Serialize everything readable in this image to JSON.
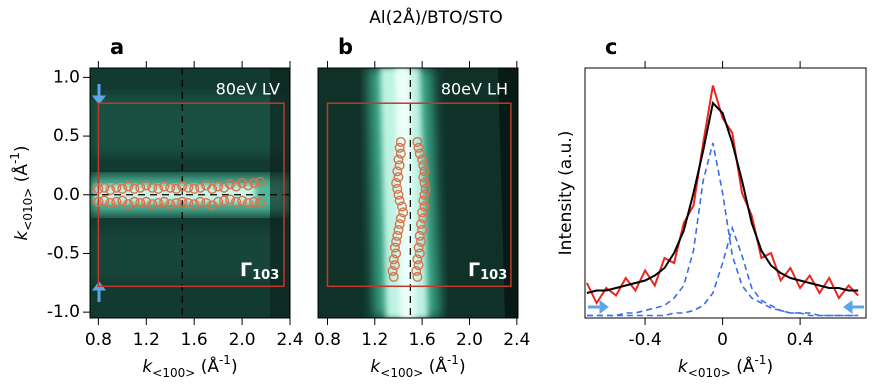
{
  "title": "Al(2Å)/BTO/STO",
  "chart_data": [
    {
      "type": "scatter",
      "label": "a",
      "annotation": "80eV LV",
      "region_label": [
        "Γ",
        "103"
      ],
      "x_label": [
        "k",
        "<100>",
        " (Å",
        "-1",
        ")"
      ],
      "y_label": [
        "k",
        "<010>",
        " (Å",
        "-1",
        ")"
      ],
      "xlim": [
        0.73,
        2.4
      ],
      "ylim": [
        -1.05,
        1.08
      ],
      "xticks": [
        0.8,
        1.2,
        1.6,
        {
          "value": 2,
          "label": "2.0"
        },
        2.4
      ],
      "yticks": [
        {
          "value": 1,
          "label": "1.0"
        },
        0.5,
        {
          "value": 0,
          "label": "0.0"
        },
        -0.5,
        {
          "value": -1,
          "label": "-1.0"
        }
      ],
      "vline": 1.5,
      "hline": 0,
      "box": {
        "x": [
          0.8,
          2.35
        ],
        "y": [
          -0.78,
          0.78
        ]
      },
      "series": [
        {
          "color": "#d9734e",
          "x": [
            0.8,
            0.85,
            0.9,
            0.95,
            1.0,
            1.05,
            1.1,
            1.15,
            1.2,
            1.25,
            1.3,
            1.35,
            1.4,
            1.45,
            1.5,
            1.55,
            1.6,
            1.65,
            1.7,
            1.75,
            1.8,
            1.85,
            1.9,
            1.95,
            2.0,
            2.05,
            2.1,
            2.15
          ],
          "values": [
            0.05,
            0.06,
            0.04,
            0.06,
            0.05,
            0.07,
            0.05,
            0.06,
            0.08,
            0.06,
            0.05,
            0.07,
            0.06,
            0.05,
            0.07,
            0.06,
            0.05,
            0.06,
            0.08,
            0.05,
            0.07,
            0.06,
            0.09,
            0.07,
            0.1,
            0.08,
            0.1,
            0.11
          ]
        },
        {
          "color": "#d9734e",
          "x": [
            0.8,
            0.85,
            0.9,
            0.95,
            1.0,
            1.05,
            1.1,
            1.15,
            1.2,
            1.25,
            1.3,
            1.35,
            1.4,
            1.45,
            1.5,
            1.55,
            1.6,
            1.65,
            1.7,
            1.75,
            1.8,
            1.85,
            1.9,
            1.95,
            2.0,
            2.05,
            2.1,
            2.15
          ],
          "values": [
            -0.06,
            -0.05,
            -0.07,
            -0.06,
            -0.05,
            -0.08,
            -0.06,
            -0.07,
            -0.06,
            -0.08,
            -0.07,
            -0.06,
            -0.08,
            -0.07,
            -0.06,
            -0.07,
            -0.08,
            -0.06,
            -0.07,
            -0.09,
            -0.06,
            -0.05,
            -0.04,
            -0.06,
            -0.05,
            -0.07,
            -0.06,
            -0.07
          ]
        }
      ]
    },
    {
      "type": "scatter",
      "label": "b",
      "annotation": "80eV LH",
      "region_label": [
        "Γ",
        "103"
      ],
      "x_label": [
        "k",
        "<100>",
        " (Å",
        "-1",
        ")"
      ],
      "xlim": [
        0.72,
        2.41
      ],
      "ylim": [
        -1.05,
        1.08
      ],
      "xticks": [
        0.8,
        1.2,
        1.6,
        {
          "value": 2,
          "label": "2.0"
        },
        2.4
      ],
      "vline": 1.5,
      "box": {
        "x": [
          0.8,
          2.35
        ],
        "y": [
          -0.78,
          0.78
        ]
      },
      "series": [
        {
          "color": "#d9734e",
          "x": [
            1.42,
            1.41,
            1.42,
            1.4,
            1.41,
            1.39,
            1.4,
            1.38,
            1.39,
            1.4,
            1.41,
            1.43,
            1.44,
            1.42,
            1.41,
            1.4,
            1.39,
            1.38,
            1.37,
            1.38,
            1.36,
            1.37,
            1.35,
            1.36
          ],
          "values": [
            0.45,
            0.4,
            0.35,
            0.3,
            0.25,
            0.2,
            0.15,
            0.1,
            0.05,
            0.0,
            -0.05,
            -0.1,
            -0.15,
            -0.2,
            -0.25,
            -0.3,
            -0.35,
            -0.4,
            -0.45,
            -0.5,
            -0.55,
            -0.6,
            -0.65,
            -0.7
          ]
        },
        {
          "color": "#d9734e",
          "x": [
            1.56,
            1.57,
            1.58,
            1.6,
            1.61,
            1.62,
            1.61,
            1.62,
            1.63,
            1.62,
            1.61,
            1.62,
            1.6,
            1.61,
            1.59,
            1.6,
            1.58,
            1.59,
            1.57,
            1.58,
            1.56,
            1.57,
            1.55,
            1.56
          ],
          "values": [
            0.45,
            0.4,
            0.35,
            0.3,
            0.25,
            0.2,
            0.15,
            0.1,
            0.05,
            0.0,
            -0.05,
            -0.1,
            -0.15,
            -0.2,
            -0.25,
            -0.3,
            -0.35,
            -0.4,
            -0.45,
            -0.5,
            -0.55,
            -0.6,
            -0.65,
            -0.7
          ]
        }
      ]
    },
    {
      "type": "line",
      "label": "c",
      "x_label": [
        "k",
        "<010>",
        " (Å",
        "-1",
        ")"
      ],
      "y_label": "Intensity (a.u.)",
      "xlim": [
        -0.71,
        0.74
      ],
      "ylim": [
        0,
        1
      ],
      "xticks": [
        -0.4,
        0,
        0.4
      ],
      "x": [
        -0.7,
        -0.65,
        -0.6,
        -0.55,
        -0.5,
        -0.45,
        -0.4,
        -0.35,
        -0.3,
        -0.25,
        -0.2,
        -0.15,
        -0.1,
        -0.05,
        0,
        0.05,
        0.1,
        0.15,
        0.2,
        0.25,
        0.3,
        0.35,
        0.4,
        0.45,
        0.5,
        0.55,
        0.6,
        0.65,
        0.7
      ],
      "series": [
        {
          "color": "#e8251e",
          "dashed": false,
          "values": [
            0.14,
            0.06,
            0.12,
            0.09,
            0.16,
            0.11,
            0.19,
            0.13,
            0.24,
            0.22,
            0.38,
            0.45,
            0.7,
            0.93,
            0.8,
            0.74,
            0.5,
            0.41,
            0.24,
            0.26,
            0.15,
            0.2,
            0.12,
            0.17,
            0.1,
            0.16,
            0.08,
            0.13,
            0.09
          ]
        },
        {
          "color": "#3a6ee8",
          "dashed": true,
          "values": [
            0.01,
            0.01,
            0.01,
            0.01,
            0.02,
            0.02,
            0.03,
            0.04,
            0.05,
            0.08,
            0.13,
            0.27,
            0.55,
            0.7,
            0.5,
            0.25,
            0.13,
            0.08,
            0.06,
            0.04,
            0.03,
            0.02,
            0.02,
            0.02,
            0.01,
            0.01,
            0.01,
            0.01,
            0.01
          ]
        },
        {
          "color": "#3a6ee8",
          "dashed": true,
          "values": [
            0.01,
            0.01,
            0.01,
            0.01,
            0.01,
            0.01,
            0.01,
            0.01,
            0.01,
            0.02,
            0.02,
            0.03,
            0.05,
            0.1,
            0.22,
            0.36,
            0.25,
            0.12,
            0.07,
            0.05,
            0.03,
            0.02,
            0.02,
            0.01,
            0.01,
            0.01,
            0.01,
            0.01,
            0.01
          ]
        },
        {
          "color": "#000000",
          "dashed": false,
          "values": [
            0.1,
            0.11,
            0.11,
            0.12,
            0.13,
            0.14,
            0.15,
            0.17,
            0.2,
            0.26,
            0.35,
            0.5,
            0.67,
            0.86,
            0.82,
            0.7,
            0.55,
            0.38,
            0.27,
            0.21,
            0.18,
            0.16,
            0.15,
            0.14,
            0.13,
            0.12,
            0.12,
            0.11,
            0.11
          ]
        }
      ]
    }
  ]
}
